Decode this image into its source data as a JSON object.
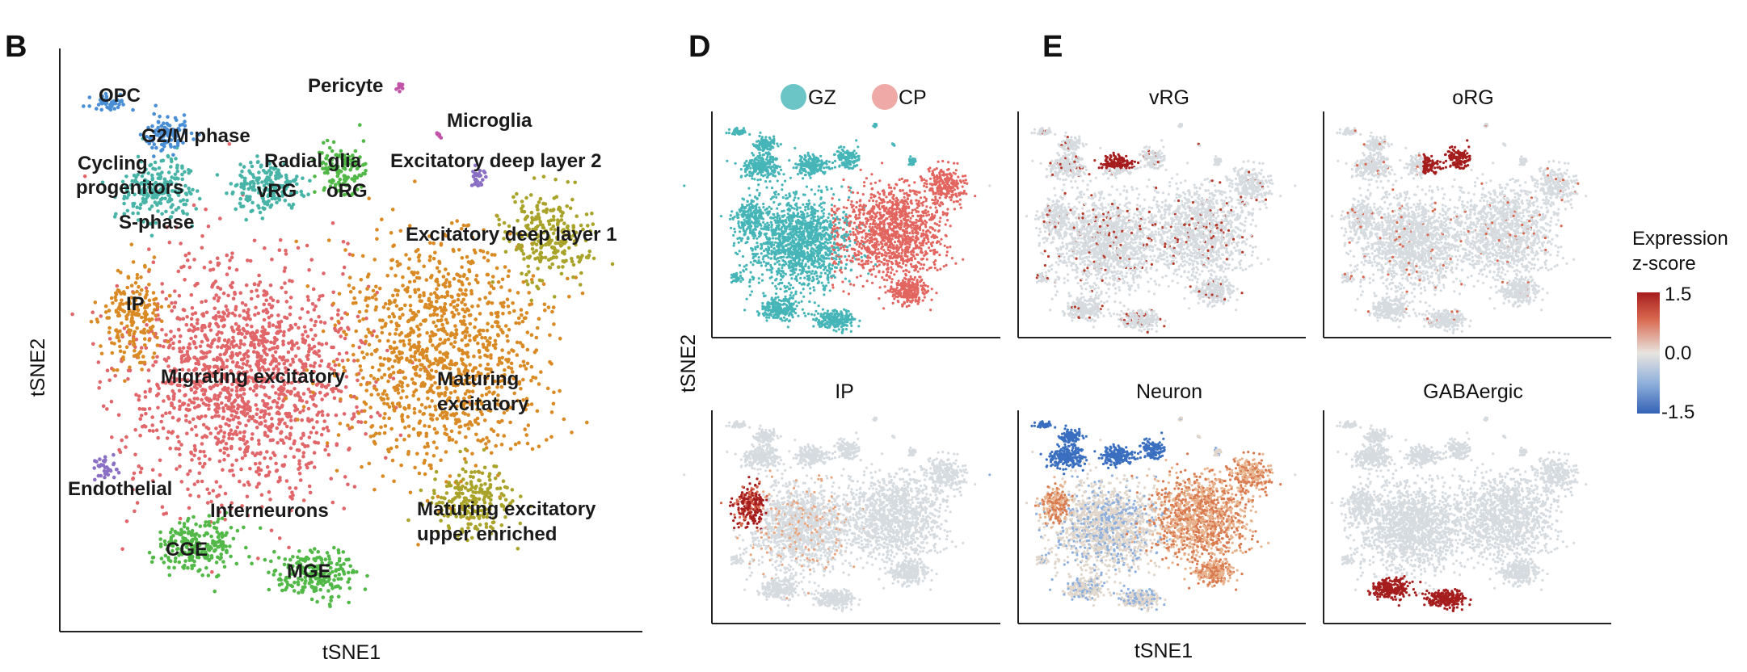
{
  "panels": {
    "B": "B",
    "D": "D",
    "E": "E"
  },
  "colors": {
    "migrating": "#e0666a",
    "maturing": "#d98a24",
    "radial": "#48b4a8",
    "green": "#52b848",
    "olive": "#a9a32a",
    "blue": "#4a8fd6",
    "purple": "#8a6fc4",
    "magenta": "#c254a8",
    "gz": "#46b5b8",
    "cp": "#e2655f",
    "grey": "#d6dbe0",
    "high": "#a51d1d",
    "low": "#3a6fc0"
  },
  "chart_data": [
    {
      "type": "scatter",
      "panel": "B",
      "xlabel": "tSNE1",
      "ylabel": "tSNE2",
      "clusters": [
        {
          "name": "OPC",
          "color": "#4a78c8"
        },
        {
          "name": "G2/M phase",
          "color": "#4a8fd6"
        },
        {
          "name": "Cycling progenitors",
          "color": "#48b4a8"
        },
        {
          "name": "S-phase",
          "color": "#48b4a8"
        },
        {
          "name": "Radial glia",
          "color": "#48a86a"
        },
        {
          "name": "vRG",
          "color": "#4a9ad0"
        },
        {
          "name": "oRG",
          "color": "#48a86a"
        },
        {
          "name": "Pericyte",
          "color": "#c254a8"
        },
        {
          "name": "Microglia",
          "color": "#c254a8"
        },
        {
          "name": "Excitatory deep layer 2",
          "color": "#8a6fc4"
        },
        {
          "name": "Excitatory deep layer 1",
          "color": "#a9a32a"
        },
        {
          "name": "IP",
          "color": "#d98a24"
        },
        {
          "name": "Migrating excitatory",
          "color": "#e0666a"
        },
        {
          "name": "Maturing excitatory",
          "color": "#d98a24"
        },
        {
          "name": "Endothelial",
          "color": "#8a6fc4"
        },
        {
          "name": "Interneurons",
          "color": "#52b848"
        },
        {
          "name": "CGE",
          "color": "#52b848"
        },
        {
          "name": "MGE",
          "color": "#52b848"
        },
        {
          "name": "Maturing excitatory upper enriched",
          "color": "#a9a32a"
        }
      ]
    },
    {
      "type": "scatter",
      "panel": "D",
      "ylabel": "tSNE2",
      "legend": [
        "GZ",
        "CP"
      ],
      "legend_position": "top"
    },
    {
      "type": "scatter",
      "panel": "E",
      "xlabel": "tSNE1",
      "subplots": [
        "vRG",
        "oRG",
        "IP",
        "Neuron",
        "GABAergic"
      ],
      "colorbar": {
        "title_line1": "Expression",
        "title_line2": "z-score",
        "max": "1.5",
        "mid": "0.0",
        "min": "-1.5",
        "range": [
          -1.5,
          1.5
        ]
      }
    }
  ]
}
